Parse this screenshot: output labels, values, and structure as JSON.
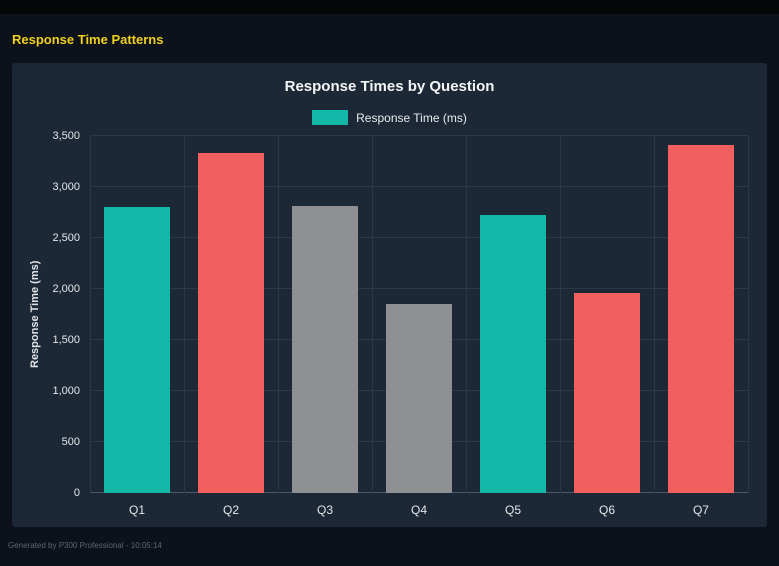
{
  "page": {
    "title": "Response Time Patterns",
    "footer": "Generated by P300 Professional - 10:05:14"
  },
  "colors": {
    "title_yellow": "#f0d01e",
    "teal": "#14b8a9",
    "red": "#f25f5f",
    "gray": "#8e9094",
    "panel_bg": "#1d2836",
    "page_bg": "#0d1119"
  },
  "chart_data": {
    "type": "bar",
    "title": "Response Times by Question",
    "legend": [
      {
        "label": "Response Time (ms)",
        "color": "#14b8a9"
      }
    ],
    "legend_position": "top",
    "categories": [
      "Q1",
      "Q2",
      "Q3",
      "Q4",
      "Q5",
      "Q6",
      "Q7"
    ],
    "series": [
      {
        "name": "Response Time (ms)",
        "values": [
          2800,
          3330,
          2810,
          1850,
          2730,
          1960,
          3410
        ]
      }
    ],
    "bar_colors": [
      "#14b8a9",
      "#f25f5f",
      "#8e9094",
      "#8e9094",
      "#14b8a9",
      "#f25f5f",
      "#f25f5f"
    ],
    "xlabel": "",
    "ylabel": "Response Time (ms)",
    "ylim": [
      0,
      3500
    ],
    "ytick_step": 500,
    "ytick_labels": [
      "0",
      "500",
      "1,000",
      "1,500",
      "2,000",
      "2,500",
      "3,000",
      "3,500"
    ],
    "grid": true
  }
}
